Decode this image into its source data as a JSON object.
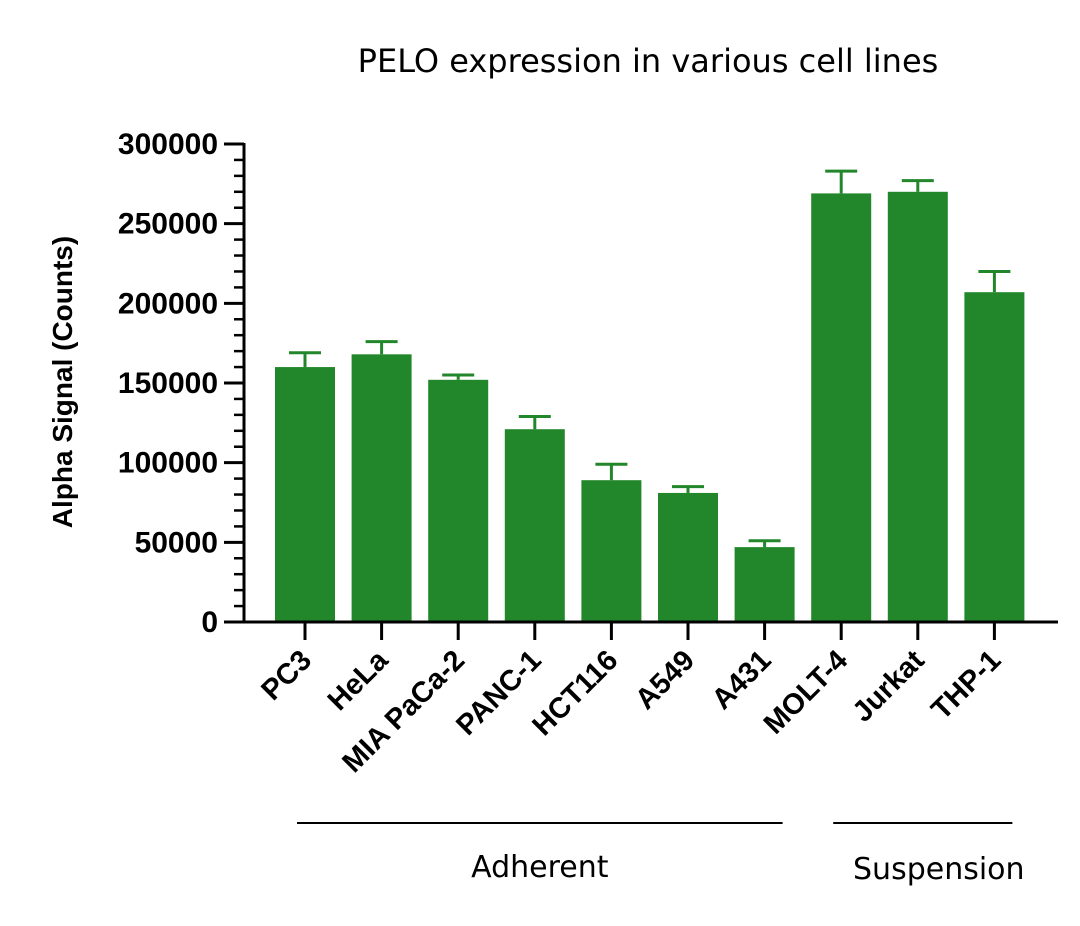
{
  "chart_data": {
    "type": "bar",
    "title": "PELO expression in various cell lines",
    "ylabel": "Alpha Signal (Counts)",
    "xlabel": "",
    "categories": [
      "PC3",
      "HeLa",
      "MIA PaCa-2",
      "PANC-1",
      "HCT116",
      "A549",
      "A431",
      "MOLT-4",
      "Jurkat",
      "THP-1"
    ],
    "values": [
      160000,
      168000,
      152000,
      121000,
      89000,
      81000,
      47000,
      269000,
      270000,
      207000
    ],
    "errors": [
      9000,
      8000,
      3000,
      8000,
      10000,
      4000,
      4000,
      14000,
      7000,
      13000
    ],
    "ylim": [
      0,
      300000
    ],
    "yticks": [
      "0",
      "50000",
      "100000",
      "150000",
      "200000",
      "250000",
      "300000"
    ],
    "ytick_values": [
      0,
      50000,
      100000,
      150000,
      200000,
      250000,
      300000
    ],
    "minor_ticks_per_major": 5,
    "bar_color": "#22862a",
    "groups": [
      {
        "label": "Adherent",
        "start": 0,
        "end": 6
      },
      {
        "label": "Suspension",
        "start": 7,
        "end": 9
      }
    ],
    "grid": false,
    "legend": "none"
  }
}
